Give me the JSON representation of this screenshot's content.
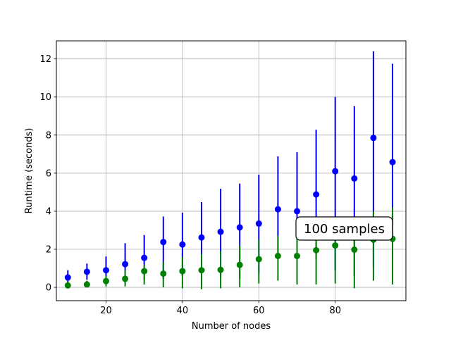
{
  "chart_data": {
    "type": "scatter",
    "title": "",
    "xlabel": "Number of nodes",
    "ylabel": "Runtime (seconds)",
    "xlim": [
      7,
      98.5
    ],
    "ylim": [
      -0.7,
      12.95
    ],
    "xticks": [
      20,
      40,
      60,
      80
    ],
    "yticks": [
      0,
      2,
      4,
      6,
      8,
      10,
      12
    ],
    "grid": true,
    "annotation": "100 samples",
    "x": [
      10,
      15,
      20,
      25,
      30,
      35,
      40,
      45,
      50,
      55,
      60,
      65,
      70,
      75,
      80,
      85,
      90,
      95
    ],
    "series": [
      {
        "color": "#0000ff",
        "values": [
          0.52,
          0.82,
          0.9,
          1.22,
          1.55,
          2.38,
          2.25,
          2.62,
          2.92,
          3.15,
          3.35,
          4.1,
          4.0,
          4.88,
          6.1,
          5.72,
          7.85,
          6.58
        ],
        "err_low": [
          0.22,
          0.4,
          0.25,
          0.18,
          0.4,
          0.45,
          0.6,
          0.25,
          0.5,
          0.45,
          0.75,
          1.5,
          1.4,
          1.5,
          0.9,
          0.6,
          1.1,
          1.5
        ],
        "err_high": [
          0.9,
          1.25,
          1.62,
          2.32,
          2.75,
          3.72,
          3.92,
          4.48,
          5.18,
          5.45,
          5.92,
          6.88,
          7.1,
          8.28,
          10.0,
          9.52,
          12.4,
          11.75
        ]
      },
      {
        "color": "#008000",
        "values": [
          0.1,
          0.15,
          0.33,
          0.45,
          0.85,
          0.72,
          0.85,
          0.9,
          0.92,
          1.18,
          1.48,
          1.65,
          1.65,
          1.95,
          2.2,
          1.98,
          2.5,
          2.55
        ],
        "err_low": [
          0.0,
          0.0,
          0.05,
          0.05,
          0.15,
          0.0,
          -0.05,
          -0.1,
          -0.05,
          0.0,
          0.2,
          0.35,
          0.15,
          0.15,
          0.2,
          -0.05,
          0.35,
          0.15
        ],
        "err_high": [
          0.3,
          0.35,
          0.6,
          0.9,
          1.2,
          1.35,
          1.6,
          1.75,
          1.9,
          2.2,
          2.5,
          2.7,
          3.0,
          3.2,
          3.5,
          3.6,
          4.0,
          4.2
        ]
      }
    ]
  }
}
